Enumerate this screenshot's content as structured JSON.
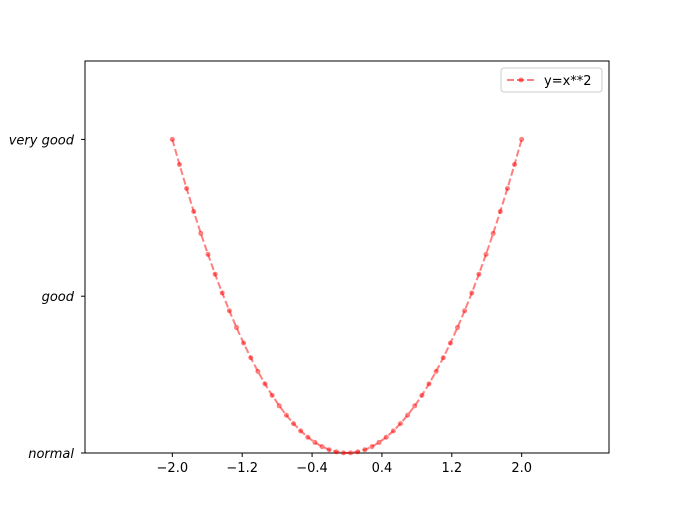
{
  "chart_data": {
    "type": "line",
    "x": [
      -2,
      -1.9184,
      -1.8367,
      -1.7551,
      -1.6735,
      -1.5918,
      -1.5102,
      -1.4286,
      -1.3469,
      -1.2653,
      -1.1837,
      -1.102,
      -1.0204,
      -0.9388,
      -0.8571,
      -0.7755,
      -0.6939,
      -0.6122,
      -0.5306,
      -0.449,
      -0.3673,
      -0.2857,
      -0.2041,
      -0.1224,
      -0.0408,
      0.0408,
      0.1224,
      0.2041,
      0.2857,
      0.3673,
      0.449,
      0.5306,
      0.6122,
      0.6939,
      0.7755,
      0.8571,
      0.9388,
      1.0204,
      1.102,
      1.1837,
      1.2653,
      1.3469,
      1.4286,
      1.5102,
      1.5918,
      1.6735,
      1.7551,
      1.8367,
      1.9184,
      2
    ],
    "series": [
      {
        "name": "y=x**2",
        "color": "#ff0000",
        "values": [
          4,
          3.6801,
          3.3736,
          3.0804,
          2.8005,
          2.5339,
          2.2807,
          2.0408,
          1.8142,
          1.601,
          1.4011,
          1.2145,
          1.0412,
          0.8813,
          0.7347,
          0.6014,
          0.4815,
          0.3748,
          0.2816,
          0.2016,
          0.1349,
          0.0816,
          0.0416,
          0.015,
          0.0017,
          0.0017,
          0.015,
          0.0416,
          0.0816,
          0.1349,
          0.2016,
          0.2816,
          0.3748,
          0.4815,
          0.6014,
          0.7347,
          0.8813,
          1.0412,
          1.2145,
          1.4011,
          1.601,
          1.8142,
          2.0408,
          2.2807,
          2.5339,
          2.8005,
          3.0804,
          3.3736,
          3.6801,
          4
        ]
      }
    ],
    "xlim": [
      -3,
      3
    ],
    "ylim": [
      0,
      5
    ],
    "xticks": [
      {
        "value": -2,
        "label": "−2.0"
      },
      {
        "value": -1.2,
        "label": "−1.2"
      },
      {
        "value": -0.4,
        "label": "−0.4"
      },
      0.4,
      1.2,
      {
        "value": 2,
        "label": "2.0"
      }
    ],
    "yticks": [
      {
        "value": 0,
        "label": "normal"
      },
      {
        "value": 2,
        "label": "good"
      },
      {
        "value": 4,
        "label": "very good"
      }
    ],
    "legend": "upper right"
  }
}
